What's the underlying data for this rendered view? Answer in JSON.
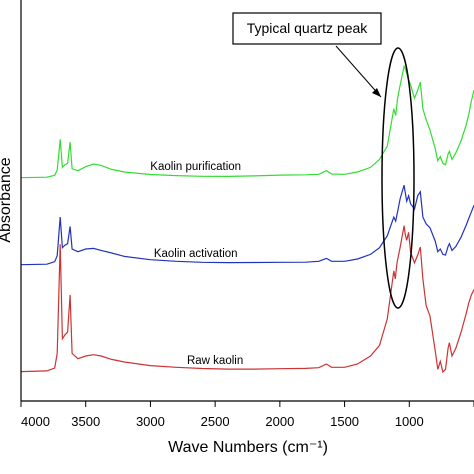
{
  "chart_data": {
    "type": "line",
    "title": "",
    "xlabel": "Wave Numbers (cm⁻¹)",
    "ylabel": "Absorbance",
    "xlim": [
      4000,
      500
    ],
    "x_ticks": [
      "4000",
      "3500",
      "3000",
      "2500",
      "2000",
      "1500",
      "1000",
      "500"
    ],
    "y_ticks": [],
    "grid": false,
    "legend": "none",
    "annotation": "Typical quartz peak",
    "series": [
      {
        "name": "Kaolin purification",
        "color": "#33dd33",
        "label_at_x": 2650,
        "points": [
          [
            4000,
            0.2
          ],
          [
            3800,
            0.6
          ],
          [
            3740,
            2.0
          ],
          [
            3720,
            6.0
          ],
          [
            3697,
            29.0
          ],
          [
            3680,
            8.0
          ],
          [
            3660,
            10.0
          ],
          [
            3640,
            11.0
          ],
          [
            3621,
            27.0
          ],
          [
            3605,
            7.0
          ],
          [
            3560,
            5.5
          ],
          [
            3500,
            8.5
          ],
          [
            3440,
            10.5
          ],
          [
            3380,
            9.5
          ],
          [
            3300,
            6.5
          ],
          [
            3200,
            4.5
          ],
          [
            3000,
            2.6
          ],
          [
            2800,
            1.8
          ],
          [
            2600,
            1.3
          ],
          [
            2400,
            1.2
          ],
          [
            2200,
            1.6
          ],
          [
            2000,
            2.2
          ],
          [
            1800,
            2.4
          ],
          [
            1700,
            2.8
          ],
          [
            1640,
            5.5
          ],
          [
            1600,
            3.0
          ],
          [
            1500,
            2.8
          ],
          [
            1400,
            4.5
          ],
          [
            1300,
            8.0
          ],
          [
            1230,
            14.0
          ],
          [
            1170,
            24.0
          ],
          [
            1120,
            52.0
          ],
          [
            1105,
            47.0
          ],
          [
            1090,
            60.0
          ],
          [
            1070,
            70.0
          ],
          [
            1040,
            84.0
          ],
          [
            1030,
            82.0
          ],
          [
            1010,
            75.0
          ],
          [
            990,
            70.0
          ],
          [
            960,
            60.0
          ],
          [
            935,
            66.0
          ],
          [
            915,
            72.0
          ],
          [
            895,
            52.0
          ],
          [
            870,
            44.0
          ],
          [
            840,
            36.0
          ],
          [
            800,
            22.0
          ],
          [
            780,
            13.0
          ],
          [
            760,
            16.0
          ],
          [
            740,
            11.0
          ],
          [
            720,
            10.0
          ],
          [
            700,
            18.0
          ],
          [
            690,
            20.0
          ],
          [
            670,
            14.0
          ],
          [
            640,
            19.0
          ],
          [
            600,
            28.0
          ],
          [
            560,
            40.0
          ],
          [
            540,
            48.0
          ],
          [
            520,
            58.0
          ],
          [
            500,
            66.0
          ]
        ]
      },
      {
        "name": "Kaolin activation",
        "color": "#2233bb",
        "label_at_x": 2650,
        "points": [
          [
            4000,
            0.2
          ],
          [
            3800,
            0.6
          ],
          [
            3740,
            2.5
          ],
          [
            3720,
            7.0
          ],
          [
            3697,
            36.0
          ],
          [
            3680,
            13.0
          ],
          [
            3660,
            15.0
          ],
          [
            3640,
            16.0
          ],
          [
            3621,
            29.0
          ],
          [
            3605,
            12.0
          ],
          [
            3560,
            10.0
          ],
          [
            3500,
            12.0
          ],
          [
            3440,
            12.5
          ],
          [
            3380,
            11.0
          ],
          [
            3300,
            9.0
          ],
          [
            3200,
            6.5
          ],
          [
            3000,
            4.0
          ],
          [
            2800,
            2.8
          ],
          [
            2600,
            2.0
          ],
          [
            2400,
            1.8
          ],
          [
            2200,
            1.9
          ],
          [
            2000,
            2.0
          ],
          [
            1800,
            2.1
          ],
          [
            1700,
            2.8
          ],
          [
            1640,
            5.0
          ],
          [
            1600,
            2.8
          ],
          [
            1500,
            2.8
          ],
          [
            1400,
            4.5
          ],
          [
            1300,
            8.0
          ],
          [
            1230,
            13.0
          ],
          [
            1170,
            22.0
          ],
          [
            1120,
            36.0
          ],
          [
            1105,
            33.0
          ],
          [
            1090,
            40.0
          ],
          [
            1070,
            50.0
          ],
          [
            1040,
            60.0
          ],
          [
            1032,
            55.0
          ],
          [
            1020,
            48.0
          ],
          [
            1005,
            52.0
          ],
          [
            990,
            46.0
          ],
          [
            960,
            42.0
          ],
          [
            935,
            52.0
          ],
          [
            915,
            55.0
          ],
          [
            895,
            36.0
          ],
          [
            870,
            31.0
          ],
          [
            840,
            28.0
          ],
          [
            800,
            18.0
          ],
          [
            780,
            10.0
          ],
          [
            760,
            12.0
          ],
          [
            740,
            8.0
          ],
          [
            720,
            7.5
          ],
          [
            700,
            14.0
          ],
          [
            690,
            16.0
          ],
          [
            670,
            11.0
          ],
          [
            640,
            14.0
          ],
          [
            600,
            21.0
          ],
          [
            560,
            30.0
          ],
          [
            540,
            35.0
          ],
          [
            520,
            40.0
          ],
          [
            500,
            45.0
          ]
        ]
      },
      {
        "name": "Raw kaolin",
        "color": "#cc3333",
        "label_at_x": 2500,
        "points": [
          [
            4000,
            0.3
          ],
          [
            3800,
            0.8
          ],
          [
            3740,
            3.0
          ],
          [
            3720,
            14.0
          ],
          [
            3697,
            96.0
          ],
          [
            3680,
            25.0
          ],
          [
            3660,
            28.0
          ],
          [
            3640,
            30.0
          ],
          [
            3621,
            58.0
          ],
          [
            3605,
            14.0
          ],
          [
            3560,
            10.0
          ],
          [
            3500,
            12.0
          ],
          [
            3440,
            13.0
          ],
          [
            3380,
            12.0
          ],
          [
            3300,
            9.5
          ],
          [
            3200,
            7.5
          ],
          [
            3000,
            4.8
          ],
          [
            2800,
            3.5
          ],
          [
            2600,
            2.6
          ],
          [
            2400,
            2.2
          ],
          [
            2200,
            2.2
          ],
          [
            2000,
            2.5
          ],
          [
            1800,
            2.7
          ],
          [
            1700,
            3.2
          ],
          [
            1640,
            6.0
          ],
          [
            1600,
            3.5
          ],
          [
            1500,
            3.5
          ],
          [
            1400,
            6.0
          ],
          [
            1300,
            12.0
          ],
          [
            1230,
            20.0
          ],
          [
            1170,
            40.0
          ],
          [
            1120,
            76.0
          ],
          [
            1108,
            70.0
          ],
          [
            1095,
            82.0
          ],
          [
            1070,
            94.0
          ],
          [
            1040,
            110.0
          ],
          [
            1032,
            104.0
          ],
          [
            1020,
            99.0
          ],
          [
            1005,
            105.0
          ],
          [
            990,
            90.0
          ],
          [
            960,
            82.0
          ],
          [
            935,
            88.0
          ],
          [
            915,
            94.0
          ],
          [
            895,
            70.0
          ],
          [
            870,
            50.0
          ],
          [
            840,
            42.0
          ],
          [
            800,
            16.0
          ],
          [
            780,
            2.0
          ],
          [
            760,
            8.0
          ],
          [
            740,
            0.0
          ],
          [
            720,
            2.0
          ],
          [
            700,
            18.0
          ],
          [
            690,
            22.0
          ],
          [
            670,
            12.0
          ],
          [
            640,
            18.0
          ],
          [
            600,
            30.0
          ],
          [
            560,
            44.0
          ],
          [
            540,
            52.0
          ],
          [
            520,
            58.0
          ],
          [
            500,
            62.0
          ]
        ]
      }
    ]
  }
}
